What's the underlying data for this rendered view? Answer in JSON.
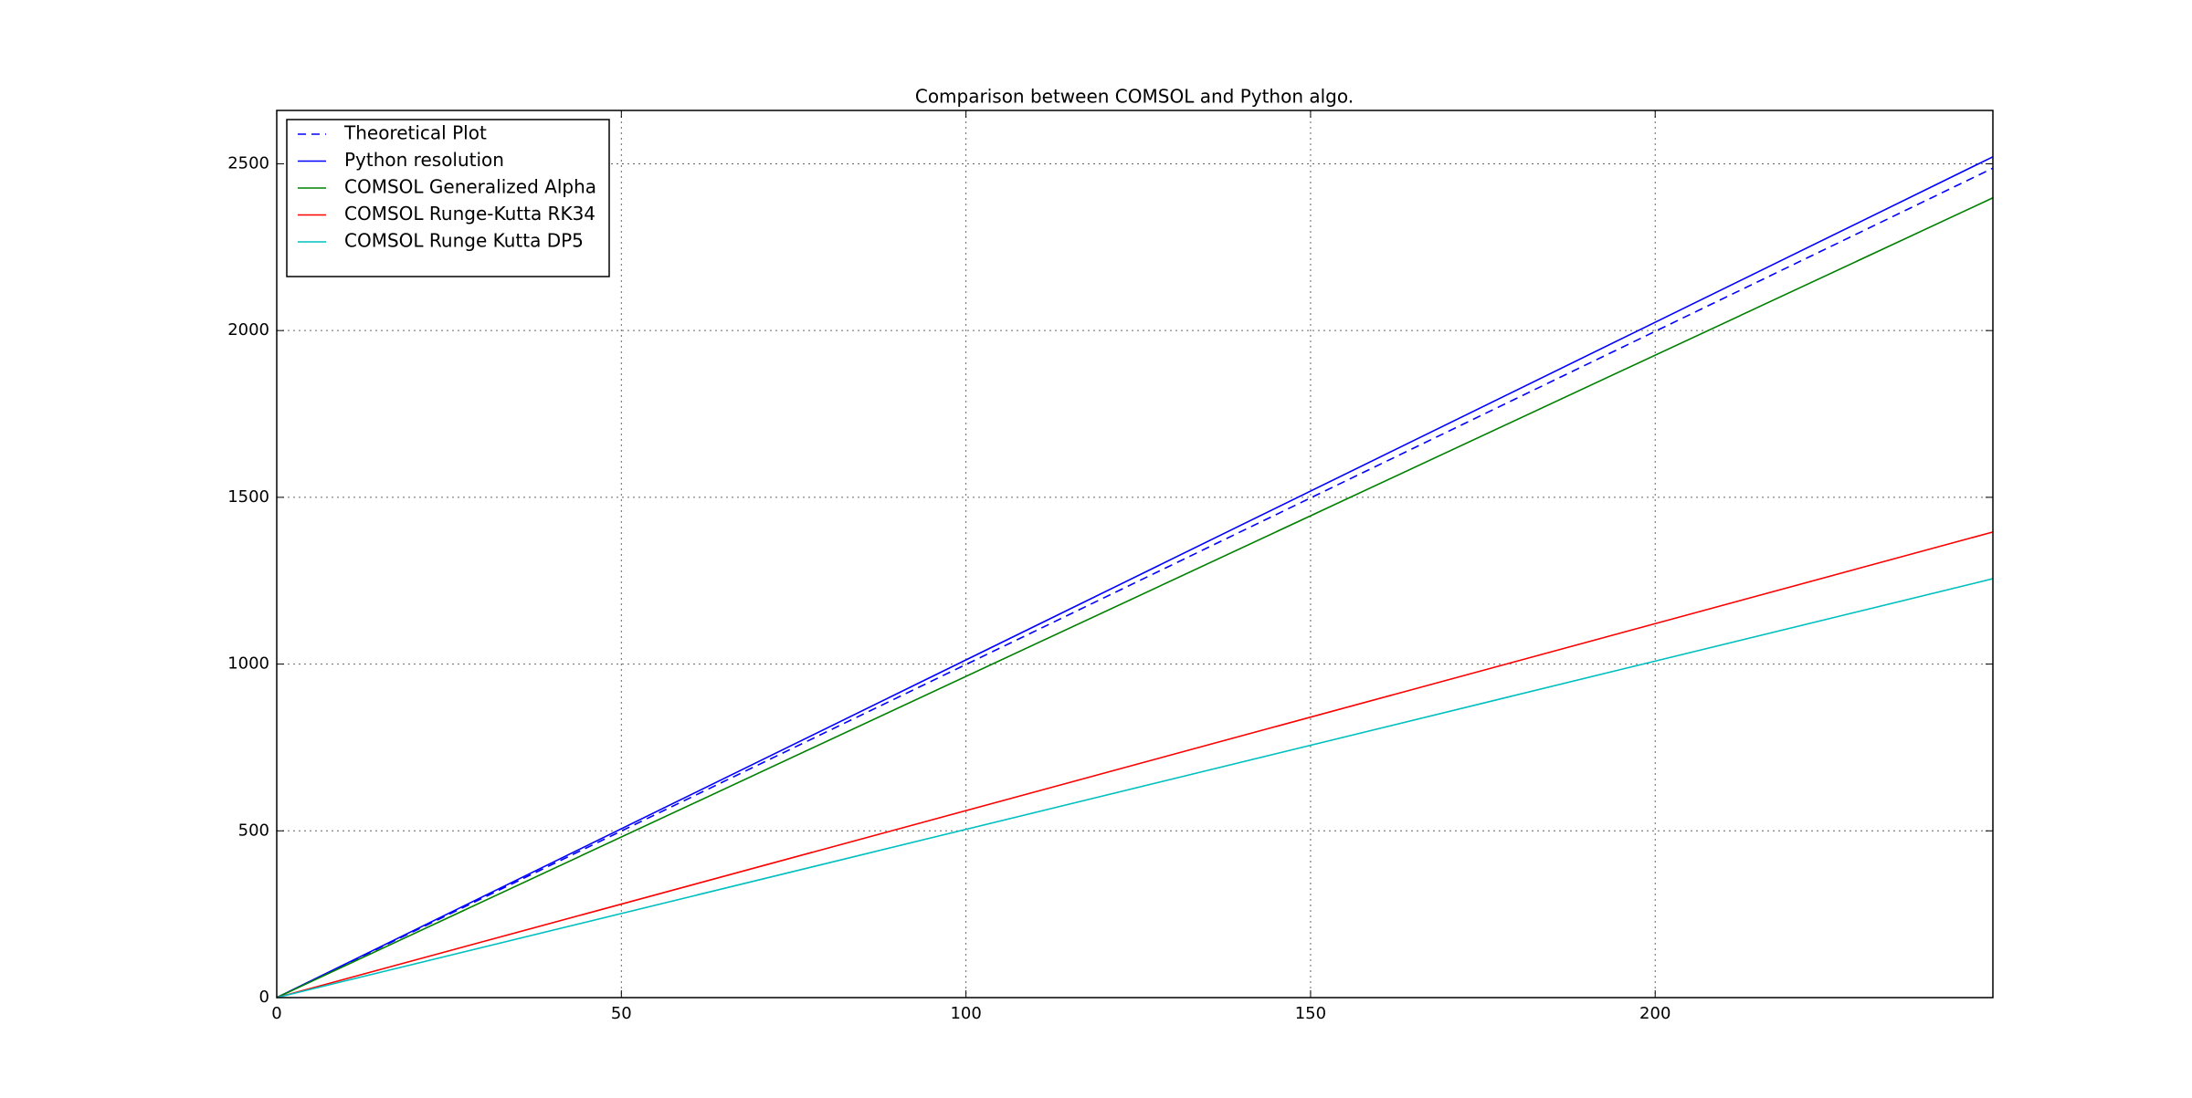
{
  "chart_data": {
    "type": "line",
    "title": "Comparison between COMSOL and Python algo.",
    "x": [
      0,
      249
    ],
    "series": [
      {
        "name": "Theoretical Plot",
        "color": "#0000ff",
        "dash": true,
        "values": [
          0,
          2487
        ]
      },
      {
        "name": "Python resolution",
        "color": "#0000ff",
        "dash": false,
        "values": [
          0,
          2521
        ]
      },
      {
        "name": "COMSOL Generalized Alpha",
        "color": "#008000",
        "dash": false,
        "values": [
          0,
          2398
        ]
      },
      {
        "name": "COMSOL Runge-Kutta RK34",
        "color": "#ff0000",
        "dash": false,
        "values": [
          0,
          1396
        ]
      },
      {
        "name": "COMSOL Runge Kutta DP5",
        "color": "#00bfbf",
        "dash": false,
        "values": [
          0,
          1256
        ]
      }
    ],
    "xlim": [
      0,
      249
    ],
    "xticks": [
      0,
      50,
      100,
      150,
      200
    ],
    "ylim": [
      0,
      2660
    ],
    "yticks": [
      0,
      500,
      1000,
      1500,
      2000,
      2500
    ],
    "grid": true,
    "legend": "upper-left"
  }
}
